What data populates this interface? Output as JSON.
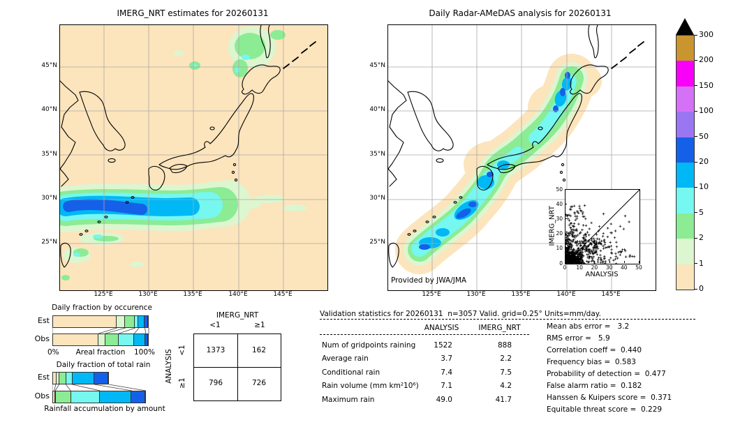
{
  "left_map": {
    "title": "IMERG_NRT estimates for 20260131",
    "lat_ticks": [
      "45°N",
      "40°N",
      "35°N",
      "30°N",
      "25°N"
    ],
    "lon_ticks": [
      "125°E",
      "130°E",
      "135°E",
      "140°E",
      "145°E"
    ]
  },
  "right_map": {
    "title": "Daily Radar-AMeDAS analysis for 20260131",
    "lat_ticks": [
      "45°N",
      "40°N",
      "35°N",
      "30°N",
      "25°N"
    ],
    "lon_ticks": [
      "125°E",
      "130°E",
      "135°E",
      "140°E",
      "145°E"
    ],
    "credit": "Provided by JWA/JMA"
  },
  "colorbar": {
    "tick_labels": [
      "0",
      "1",
      "2",
      "5",
      "10",
      "20",
      "50",
      "100",
      "150",
      "200",
      "300"
    ],
    "colors": [
      "#fce4bc",
      "#dcf6d0",
      "#8bec94",
      "#76f7ef",
      "#00b8f5",
      "#1560e8",
      "#9a76f2",
      "#d571f7",
      "#f900f9",
      "#c9952f"
    ],
    "overflow_color": "#000000"
  },
  "occurrence_chart": {
    "title": "Daily fraction by occurence",
    "row_labels": [
      "Est",
      "Obs"
    ],
    "x_left": "0%",
    "x_label": "Areal fraction",
    "x_right": "100%",
    "est_segments": [
      67,
      9,
      10,
      4,
      6,
      4
    ],
    "obs_segments": [
      48,
      7,
      14,
      16,
      12,
      3
    ]
  },
  "totalrain_chart": {
    "title": "Daily fraction of total rain",
    "row_labels": [
      "Est",
      "Obs"
    ],
    "bottom_label": "Rainfall accumulation by amount",
    "est_segments": [
      3.5,
      3.5,
      7,
      6.5,
      23,
      15
    ],
    "obs_segments": [
      2,
      1,
      16,
      30.5,
      33,
      14.5
    ]
  },
  "contingency": {
    "col_title": "IMERG_NRT",
    "row_title": "ANALYSIS",
    "col_labels": [
      "<1",
      "≥1"
    ],
    "row_labels": [
      "<1",
      "≥1"
    ],
    "values": [
      [
        "1373",
        "162"
      ],
      [
        "796",
        "726"
      ]
    ]
  },
  "validation": {
    "title": "Validation statistics for 20260131  n=3057 Valid. grid=0.25° Units=mm/day.",
    "col_analysis": "ANALYSIS",
    "col_imerg": "IMERG_NRT",
    "rows": [
      {
        "label": "Num of gridpoints raining",
        "analysis": "1522",
        "imerg": "888"
      },
      {
        "label": "Average rain",
        "analysis": "3.7",
        "imerg": "2.2"
      },
      {
        "label": "Conditional rain",
        "analysis": "7.4",
        "imerg": "7.5"
      },
      {
        "label": "Rain volume (mm km²10⁶)",
        "analysis": "7.1",
        "imerg": "4.2"
      },
      {
        "label": "Maximum rain",
        "analysis": "49.0",
        "imerg": "41.7"
      }
    ]
  },
  "scores": [
    "Mean abs error =   3.2",
    "RMS error =   5.9",
    "Correlation coeff =  0.440",
    "Frequency bias =  0.583",
    "Probability of detection =  0.477",
    "False alarm ratio =  0.182",
    "Hanssen & Kuipers score =  0.371",
    "Equitable threat score =  0.229"
  ],
  "inset": {
    "xlabel": "ANALYSIS",
    "ylabel": "IMERG_NRT",
    "ticks": [
      "0",
      "10",
      "20",
      "30",
      "40",
      "50"
    ]
  },
  "chart_data": [
    {
      "type": "bar",
      "title": "Daily fraction by occurence",
      "stacked": true,
      "orientation": "horizontal",
      "categories": [
        "0-1",
        "1-2",
        "2-5",
        "5-10",
        "10-20",
        "20-50"
      ],
      "series": [
        {
          "name": "Est",
          "values": [
            67,
            9,
            10,
            4,
            6,
            4
          ]
        },
        {
          "name": "Obs",
          "values": [
            48,
            7,
            14,
            16,
            12,
            3
          ]
        }
      ],
      "xlabel": "Areal fraction",
      "xlim": [
        0,
        100
      ],
      "units": "%"
    },
    {
      "type": "bar",
      "title": "Daily fraction of total rain",
      "stacked": true,
      "orientation": "horizontal",
      "categories": [
        "0-1",
        "1-2",
        "2-5",
        "5-10",
        "10-20",
        "20-50"
      ],
      "series": [
        {
          "name": "Est",
          "values": [
            3.5,
            3.5,
            7,
            6.5,
            23,
            15
          ]
        },
        {
          "name": "Obs",
          "values": [
            2,
            1,
            16,
            30.5,
            33,
            14.5
          ]
        }
      ],
      "xlabel": "Rainfall accumulation by amount",
      "xlim": [
        0,
        100
      ],
      "units": "%"
    },
    {
      "type": "table",
      "title": "Contingency table",
      "col_header": "IMERG_NRT",
      "row_header": "ANALYSIS",
      "columns": [
        "<1",
        "≥1"
      ],
      "rows": [
        "<1",
        "≥1"
      ],
      "values": [
        [
          1373,
          162
        ],
        [
          796,
          726
        ]
      ]
    },
    {
      "type": "table",
      "title": "Validation statistics for 20260131  n=3057 Valid. grid=0.25° Units=mm/day.",
      "columns": [
        "ANALYSIS",
        "IMERG_NRT"
      ],
      "rows": [
        [
          "Num of gridpoints raining",
          1522,
          888
        ],
        [
          "Average rain",
          3.7,
          2.2
        ],
        [
          "Conditional rain",
          7.4,
          7.5
        ],
        [
          "Rain volume (mm km²10⁶)",
          7.1,
          4.2
        ],
        [
          "Maximum rain",
          49.0,
          41.7
        ]
      ],
      "scores": {
        "Mean abs error": 3.2,
        "RMS error": 5.9,
        "Correlation coeff": 0.44,
        "Frequency bias": 0.583,
        "Probability of detection": 0.477,
        "False alarm ratio": 0.182,
        "Hanssen & Kuipers score": 0.371,
        "Equitable threat score": 0.229
      }
    },
    {
      "type": "scatter",
      "title": "IMERG_NRT vs ANALYSIS",
      "xlabel": "ANALYSIS",
      "ylabel": "IMERG_NRT",
      "xlim": [
        0,
        50
      ],
      "ylim": [
        0,
        50
      ],
      "marker": "+",
      "diagonal_line": true,
      "clusters_cx_cy_sx_sy_n": [
        [
          4,
          3,
          4,
          3.5,
          420
        ],
        [
          7,
          18,
          4,
          9,
          90
        ],
        [
          15,
          8,
          6,
          5,
          80
        ],
        [
          28,
          7,
          10,
          5,
          60
        ],
        [
          8,
          35,
          4,
          4,
          25
        ],
        [
          30,
          25,
          8,
          6,
          15
        ],
        [
          2,
          10,
          2,
          6,
          80
        ],
        [
          20,
          15,
          6,
          5,
          60
        ]
      ]
    },
    {
      "type": "heatmap",
      "title": "Precipitation colour scale (mm/day)",
      "levels": [
        0,
        1,
        2,
        5,
        10,
        20,
        50,
        100,
        150,
        200,
        300
      ],
      "colors": [
        "#fce4bc",
        "#dcf6d0",
        "#8bec94",
        "#76f7ef",
        "#00b8f5",
        "#1560e8",
        "#9a76f2",
        "#d571f7",
        "#f900f9",
        "#c9952f"
      ],
      "overflow": "black triangle above 300"
    }
  ]
}
